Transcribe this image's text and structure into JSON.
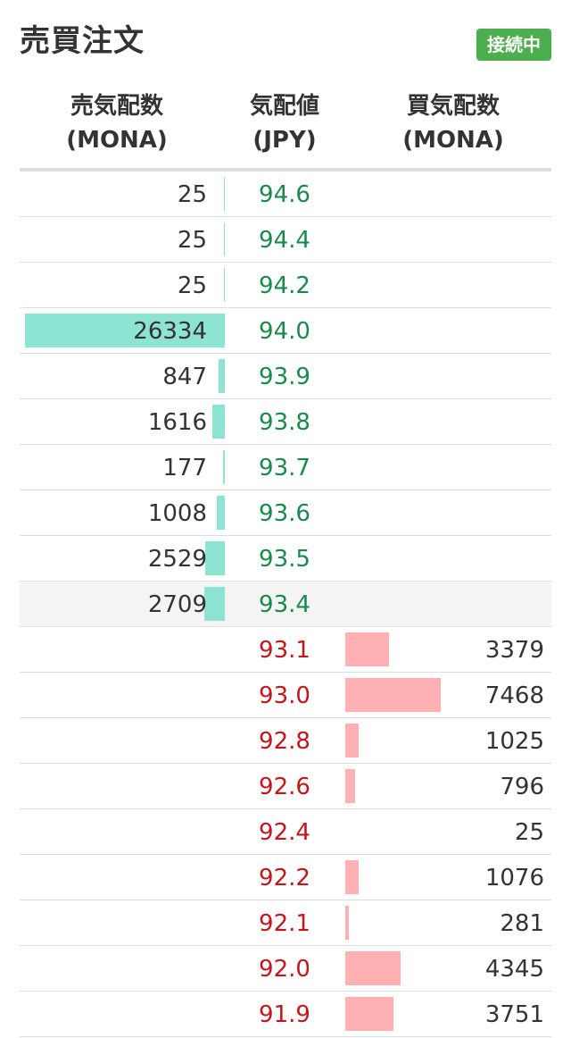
{
  "header": {
    "title": "売買注文",
    "status": "接続中",
    "status_color": "#4cae4c"
  },
  "columns": {
    "ask_qty": [
      "売気配数",
      "(MONA)"
    ],
    "price": [
      "気配値",
      "(JPY)"
    ],
    "bid_qty": [
      "買気配数",
      "(MONA)"
    ]
  },
  "colors": {
    "ask_price": "#1a8a4c",
    "bid_price": "#c4161c",
    "ask_bar": "#8ee4d2",
    "bid_bar": "#ffb0b3"
  },
  "asks": [
    {
      "qty": "25",
      "price": "94.6"
    },
    {
      "qty": "25",
      "price": "94.4"
    },
    {
      "qty": "25",
      "price": "94.2"
    },
    {
      "qty": "26334",
      "price": "94.0"
    },
    {
      "qty": "847",
      "price": "93.9"
    },
    {
      "qty": "1616",
      "price": "93.8"
    },
    {
      "qty": "177",
      "price": "93.7"
    },
    {
      "qty": "1008",
      "price": "93.6"
    },
    {
      "qty": "2529",
      "price": "93.5"
    },
    {
      "qty": "2709",
      "price": "93.4"
    }
  ],
  "bids": [
    {
      "price": "93.1",
      "qty": "3379"
    },
    {
      "price": "93.0",
      "qty": "7468"
    },
    {
      "price": "92.8",
      "qty": "1025"
    },
    {
      "price": "92.6",
      "qty": "796"
    },
    {
      "price": "92.4",
      "qty": "25"
    },
    {
      "price": "92.2",
      "qty": "1076"
    },
    {
      "price": "92.1",
      "qty": "281"
    },
    {
      "price": "92.0",
      "qty": "4345"
    },
    {
      "price": "91.9",
      "qty": "3751"
    }
  ]
}
